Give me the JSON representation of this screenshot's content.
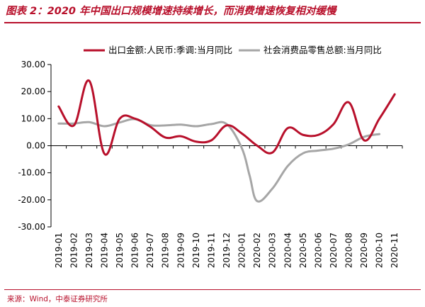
{
  "title": "图表 2：2020 年中国出口规模增速持续增长，而消费增速恢复相对缓慢",
  "source": "来源：Wind，中泰证券研究所",
  "colors": {
    "accent": "#b8102b",
    "series_export": "#b8102b",
    "series_retail": "#a6a6a6"
  },
  "chart_data": {
    "type": "line",
    "categories": [
      "2019-01",
      "2019-02",
      "2019-03",
      "2019-04",
      "2019-05",
      "2019-06",
      "2019-07",
      "2019-08",
      "2019-09",
      "2019-10",
      "2019-11",
      "2019-12",
      "2020-01",
      "2020-02",
      "2020-03",
      "2020-04",
      "2020-05",
      "2020-06",
      "2020-07",
      "2020-08",
      "2020-09",
      "2020-10",
      "2020-11"
    ],
    "yticks": [
      "30.00",
      "20.00",
      "10.00",
      "0.00",
      "-10.00",
      "-20.00",
      "-30.00"
    ],
    "ylim": [
      -30,
      30
    ],
    "legend_position": "top",
    "series": [
      {
        "name": "出口金额:人民币:季调:当月同比",
        "color": "#b8102b",
        "points": [
          [
            0,
            14.5
          ],
          [
            1,
            7.5
          ],
          [
            2,
            24
          ],
          [
            3,
            -3
          ],
          [
            4,
            10
          ],
          [
            5,
            10
          ],
          [
            6,
            7
          ],
          [
            7,
            3
          ],
          [
            8,
            3.5
          ],
          [
            9,
            1.5
          ],
          [
            10,
            2
          ],
          [
            11,
            7.5
          ],
          [
            12,
            4.5
          ],
          [
            13,
            0
          ],
          [
            14,
            -2.5
          ],
          [
            15,
            6.5
          ],
          [
            16,
            4
          ],
          [
            17,
            4
          ],
          [
            18,
            8
          ],
          [
            19,
            16
          ],
          [
            20,
            2
          ],
          [
            21,
            10
          ],
          [
            22,
            19
          ]
        ]
      },
      {
        "name": "社会消费品零售总额:当月同比",
        "color": "#a6a6a6",
        "points": [
          [
            0,
            8.2
          ],
          [
            1,
            8.2
          ],
          [
            2,
            8.7
          ],
          [
            3,
            7.2
          ],
          [
            4,
            8.6
          ],
          [
            5,
            9.8
          ],
          [
            6,
            7.6
          ],
          [
            7,
            7.5
          ],
          [
            8,
            7.8
          ],
          [
            9,
            7.2
          ],
          [
            10,
            8
          ],
          [
            11,
            8
          ],
          [
            12,
            -1
          ],
          [
            12.5,
            -11
          ],
          [
            13,
            -20.5
          ],
          [
            14,
            -15.8
          ],
          [
            15,
            -7.5
          ],
          [
            16,
            -2.8
          ],
          [
            17,
            -1.8
          ],
          [
            18,
            -1.1
          ],
          [
            19,
            0.5
          ],
          [
            20,
            3.3
          ],
          [
            21,
            4.3
          ]
        ]
      }
    ]
  }
}
